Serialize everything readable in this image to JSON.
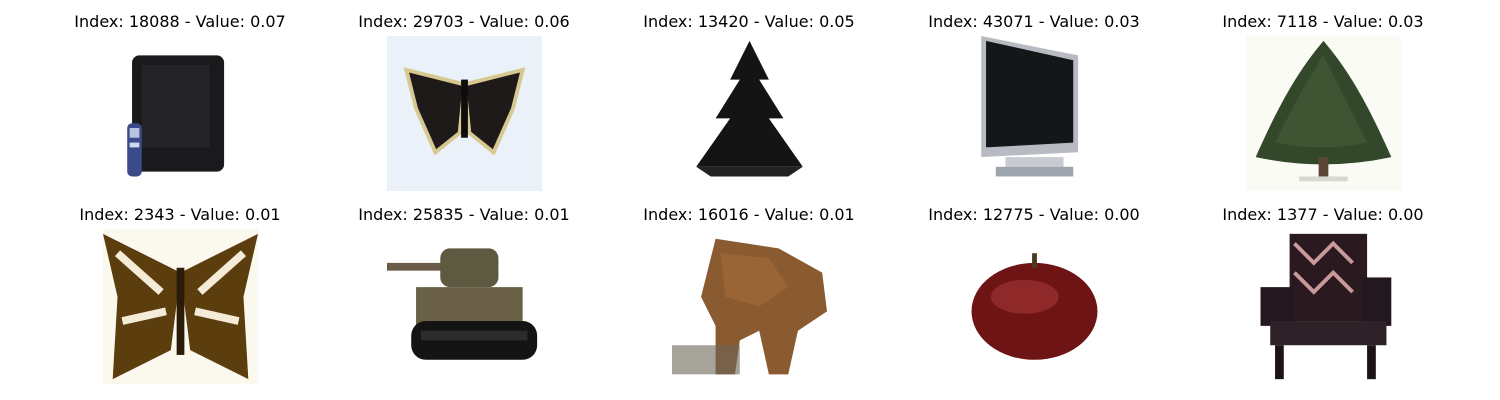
{
  "figure": {
    "cells": [
      {
        "title": "Index: 18088 - Value: 0.07",
        "subject": "crt-television-with-remote",
        "index": 18088,
        "value": 0.07
      },
      {
        "title": "Index: 29703 - Value: 0.06",
        "subject": "dark-butterfly",
        "index": 29703,
        "value": 0.06
      },
      {
        "title": "Index: 13420 - Value: 0.05",
        "subject": "dark-pine-tree",
        "index": 13420,
        "value": 0.05
      },
      {
        "title": "Index: 43071 - Value: 0.03",
        "subject": "flat-screen-television",
        "index": 43071,
        "value": 0.03
      },
      {
        "title": "Index: 7118 - Value: 0.03",
        "subject": "green-pine-tree",
        "index": 7118,
        "value": 0.03
      },
      {
        "title": "Index: 2343 - Value: 0.01",
        "subject": "brown-butterfly",
        "index": 2343,
        "value": 0.01
      },
      {
        "title": "Index: 25835 - Value: 0.01",
        "subject": "tank",
        "index": 25835,
        "value": 0.01
      },
      {
        "title": "Index: 16016 - Value: 0.01",
        "subject": "bear",
        "index": 16016,
        "value": 0.01
      },
      {
        "title": "Index: 12775 - Value: 0.00",
        "subject": "red-apple",
        "index": 12775,
        "value": 0.0
      },
      {
        "title": "Index: 1377 - Value: 0.00",
        "subject": "armchair",
        "index": 1377,
        "value": 0.0
      }
    ]
  }
}
